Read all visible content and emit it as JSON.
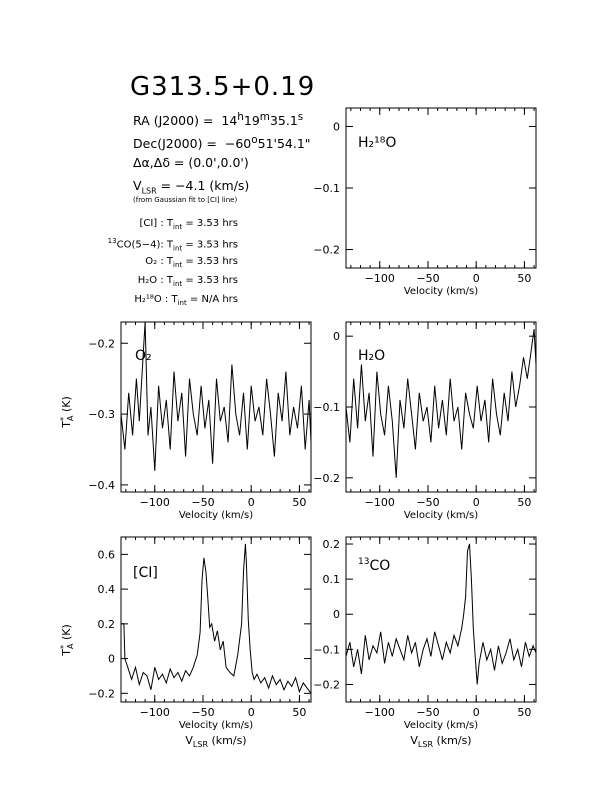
{
  "title": "G313.5+0.19",
  "header": {
    "ra_label": "RA (J2000)",
    "ra_h": "14",
    "ra_m": "19",
    "ra_s": "35.1",
    "dec_label": "Dec(J2000)",
    "dec_deg": "−60",
    "dec_rest": "51'54.1\"",
    "offset_label": "Δα,Δδ = (0.0',0.0')",
    "vlsr_label": "V",
    "vlsr_sub": "LSR",
    "vlsr_value": " = −4.1 (km/s)",
    "vlsr_note": "(from Gaussian fit to [CI] line)"
  },
  "integration": [
    {
      "line": "[CI] : T",
      "sub": "int",
      "value": " = 3.53 hrs"
    },
    {
      "line_sup": "13",
      "line": "CO(5−4): T",
      "sub": "int",
      "value": " = 3.53 hrs"
    },
    {
      "line": "O₂ : T",
      "sub": "int",
      "value": " = 3.53 hrs"
    },
    {
      "line": "H₂O : T",
      "sub": "int",
      "value": " = 3.53 hrs"
    },
    {
      "line": "H₂¹⁸O : T",
      "sub": "int",
      "value": " = N/A hrs"
    }
  ],
  "chart_data": [
    {
      "id": "h218o",
      "type": "line",
      "label": "H₂¹⁸O",
      "xlim": [
        -135,
        62
      ],
      "ylim": [
        -0.23,
        0.03
      ],
      "xticks": [
        -100,
        -50,
        0,
        50
      ],
      "yticks": [
        0,
        -0.1,
        -0.2
      ],
      "xlabel": "Velocity (km/s)",
      "ylabel": "",
      "x": [],
      "y": []
    },
    {
      "id": "o2",
      "type": "line",
      "label": "O₂",
      "xlim": [
        -135,
        62
      ],
      "ylim": [
        -0.41,
        -0.17
      ],
      "xticks": [
        -100,
        -50,
        0,
        50
      ],
      "yticks": [
        -0.2,
        -0.3,
        -0.4
      ],
      "xlabel": "Velocity (km/s)",
      "ylabel": "T*A (K)",
      "x": [
        -135,
        -131,
        -127,
        -123,
        -119,
        -116,
        -113,
        -110,
        -107,
        -104,
        -100,
        -96,
        -92,
        -88,
        -84,
        -80,
        -76,
        -72,
        -68,
        -64,
        -60,
        -56,
        -52,
        -48,
        -44,
        -40,
        -36,
        -32,
        -28,
        -24,
        -20,
        -16,
        -12,
        -8,
        -4,
        0,
        4,
        8,
        12,
        16,
        20,
        24,
        28,
        32,
        36,
        40,
        44,
        48,
        52,
        56,
        60,
        62
      ],
      "y": [
        -0.3,
        -0.35,
        -0.27,
        -0.33,
        -0.25,
        -0.31,
        -0.24,
        -0.17,
        -0.33,
        -0.29,
        -0.38,
        -0.26,
        -0.32,
        -0.28,
        -0.35,
        -0.24,
        -0.31,
        -0.27,
        -0.36,
        -0.25,
        -0.3,
        -0.33,
        -0.26,
        -0.32,
        -0.28,
        -0.37,
        -0.25,
        -0.31,
        -0.29,
        -0.34,
        -0.23,
        -0.3,
        -0.33,
        -0.27,
        -0.35,
        -0.26,
        -0.31,
        -0.29,
        -0.33,
        -0.25,
        -0.3,
        -0.36,
        -0.27,
        -0.31,
        -0.24,
        -0.33,
        -0.29,
        -0.32,
        -0.26,
        -0.35,
        -0.28,
        -0.34
      ]
    },
    {
      "id": "h2o",
      "type": "line",
      "label": "H₂O",
      "xlim": [
        -135,
        62
      ],
      "ylim": [
        -0.22,
        0.02
      ],
      "xticks": [
        -100,
        -50,
        0,
        50
      ],
      "yticks": [
        0,
        -0.1,
        -0.2
      ],
      "xlabel": "Velocity (km/s)",
      "ylabel": "",
      "x": [
        -135,
        -131,
        -127,
        -123,
        -119,
        -115,
        -111,
        -107,
        -103,
        -99,
        -95,
        -91,
        -87,
        -83,
        -79,
        -75,
        -71,
        -67,
        -63,
        -59,
        -55,
        -51,
        -47,
        -43,
        -39,
        -35,
        -31,
        -27,
        -23,
        -19,
        -15,
        -11,
        -7,
        -3,
        1,
        5,
        9,
        13,
        17,
        21,
        25,
        29,
        33,
        37,
        41,
        45,
        49,
        53,
        57,
        60,
        62
      ],
      "y": [
        -0.1,
        -0.15,
        -0.06,
        -0.13,
        -0.04,
        -0.12,
        -0.08,
        -0.17,
        -0.05,
        -0.11,
        -0.14,
        -0.07,
        -0.12,
        -0.2,
        -0.09,
        -0.13,
        -0.06,
        -0.11,
        -0.16,
        -0.08,
        -0.12,
        -0.1,
        -0.15,
        -0.07,
        -0.13,
        -0.09,
        -0.14,
        -0.06,
        -0.12,
        -0.1,
        -0.16,
        -0.08,
        -0.11,
        -0.13,
        -0.07,
        -0.12,
        -0.09,
        -0.15,
        -0.06,
        -0.11,
        -0.14,
        -0.08,
        -0.12,
        -0.05,
        -0.1,
        -0.07,
        -0.03,
        -0.06,
        -0.02,
        0.01,
        -0.04
      ]
    },
    {
      "id": "ci",
      "type": "line",
      "label": "[CI]",
      "xlim": [
        -135,
        62
      ],
      "ylim": [
        -0.25,
        0.7
      ],
      "xticks": [
        -100,
        -50,
        0,
        50
      ],
      "yticks": [
        0.6,
        0.4,
        0.2,
        0,
        -0.2
      ],
      "xlabel": "Velocity (km/s)",
      "xlabel2": "V",
      "xlabel2_sub": "LSR",
      "xlabel2_rest": " (km/s)",
      "ylabel": "T*A (K)",
      "x": [
        -135,
        -132,
        -131,
        -128,
        -124,
        -120,
        -116,
        -112,
        -108,
        -104,
        -100,
        -96,
        -92,
        -88,
        -84,
        -80,
        -76,
        -72,
        -68,
        -64,
        -60,
        -56,
        -53,
        -51,
        -49,
        -47,
        -45,
        -43,
        -41,
        -38,
        -35,
        -32,
        -29,
        -26,
        -22,
        -18,
        -14,
        -10,
        -8,
        -6,
        -5,
        -3,
        -1,
        1,
        3,
        6,
        10,
        14,
        18,
        22,
        26,
        30,
        34,
        38,
        42,
        46,
        50,
        54,
        58,
        62
      ],
      "y": [
        0.2,
        0.2,
        0.0,
        -0.05,
        -0.12,
        -0.05,
        -0.15,
        -0.08,
        -0.1,
        -0.18,
        -0.05,
        -0.12,
        -0.09,
        -0.14,
        -0.06,
        -0.11,
        -0.08,
        -0.13,
        -0.07,
        -0.1,
        -0.05,
        0.02,
        0.15,
        0.45,
        0.58,
        0.5,
        0.35,
        0.18,
        0.2,
        0.1,
        0.16,
        0.05,
        0.1,
        -0.05,
        -0.08,
        -0.1,
        0.02,
        0.2,
        0.5,
        0.66,
        0.55,
        0.22,
        0.05,
        -0.08,
        -0.12,
        -0.09,
        -0.14,
        -0.11,
        -0.17,
        -0.1,
        -0.15,
        -0.12,
        -0.18,
        -0.13,
        -0.16,
        -0.11,
        -0.19,
        -0.14,
        -0.17,
        -0.2
      ]
    },
    {
      "id": "co13",
      "type": "line",
      "label": "13CO",
      "xlim": [
        -135,
        62
      ],
      "ylim": [
        -0.25,
        0.22
      ],
      "xticks": [
        -100,
        -50,
        0,
        50
      ],
      "yticks": [
        0.2,
        0.1,
        0,
        -0.1,
        -0.2
      ],
      "xlabel": "Velocity (km/s)",
      "xlabel2": "V",
      "xlabel2_sub": "LSR",
      "xlabel2_rest": " (km/s)",
      "ylabel": "",
      "x": [
        -135,
        -131,
        -127,
        -123,
        -119,
        -115,
        -111,
        -107,
        -103,
        -99,
        -95,
        -91,
        -87,
        -83,
        -79,
        -75,
        -71,
        -67,
        -63,
        -59,
        -55,
        -51,
        -47,
        -43,
        -39,
        -35,
        -31,
        -27,
        -23,
        -19,
        -15,
        -13,
        -11,
        -9,
        -7,
        -5,
        -3,
        -1,
        1,
        3,
        7,
        11,
        15,
        19,
        23,
        27,
        31,
        35,
        39,
        43,
        47,
        51,
        55,
        59,
        62
      ],
      "y": [
        -0.12,
        -0.08,
        -0.15,
        -0.1,
        -0.17,
        -0.06,
        -0.13,
        -0.09,
        -0.11,
        -0.05,
        -0.14,
        -0.08,
        -0.12,
        -0.07,
        -0.1,
        -0.13,
        -0.06,
        -0.11,
        -0.08,
        -0.15,
        -0.1,
        -0.07,
        -0.12,
        -0.05,
        -0.09,
        -0.13,
        -0.08,
        -0.11,
        -0.06,
        -0.09,
        -0.04,
        0.0,
        0.05,
        0.18,
        0.2,
        0.1,
        -0.04,
        -0.12,
        -0.2,
        -0.14,
        -0.08,
        -0.13,
        -0.1,
        -0.16,
        -0.09,
        -0.14,
        -0.11,
        -0.07,
        -0.13,
        -0.1,
        -0.15,
        -0.08,
        -0.12,
        -0.09,
        -0.11
      ]
    }
  ]
}
